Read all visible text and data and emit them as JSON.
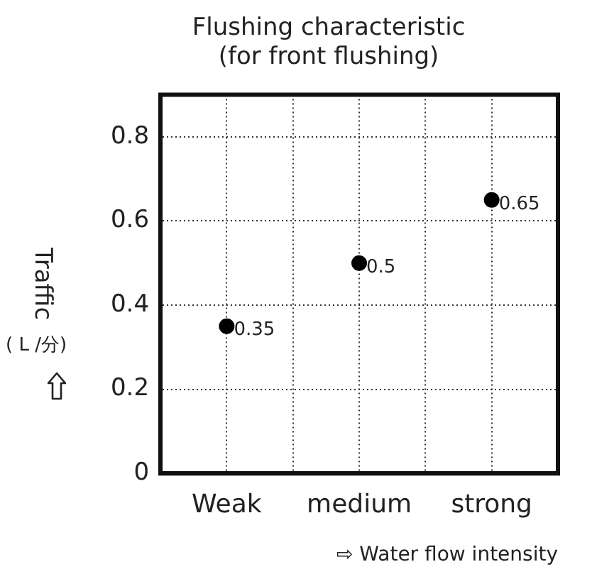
{
  "chart_data": {
    "type": "scatter",
    "title": "Flushing characteristic\n(for front flushing)",
    "xlabel": "⇨ Water flow intensity",
    "ylabel": "Traffic\n( L /分)",
    "categories": [
      "Weak",
      null,
      "medium",
      null,
      "strong"
    ],
    "values": [
      0.35,
      null,
      0.5,
      null,
      0.65
    ],
    "color": "#000000",
    "ylim": [
      0,
      0.9
    ],
    "yticks": [
      0,
      0.2,
      0.4,
      0.6,
      0.8
    ],
    "grid": true,
    "marker": "circle",
    "data_labels": true
  }
}
